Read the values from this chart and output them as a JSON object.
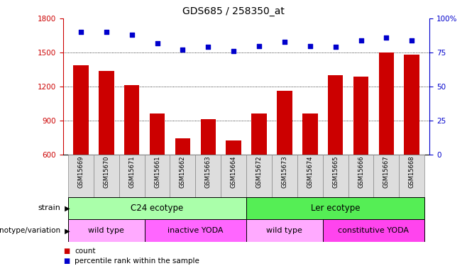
{
  "title": "GDS685 / 258350_at",
  "categories": [
    "GSM15669",
    "GSM15670",
    "GSM15671",
    "GSM15661",
    "GSM15662",
    "GSM15663",
    "GSM15664",
    "GSM15672",
    "GSM15673",
    "GSM15674",
    "GSM15665",
    "GSM15666",
    "GSM15667",
    "GSM15668"
  ],
  "bar_values": [
    1390,
    1340,
    1210,
    960,
    740,
    910,
    720,
    960,
    1160,
    960,
    1300,
    1290,
    1500,
    1480
  ],
  "scatter_values": [
    90,
    90,
    88,
    82,
    77,
    79,
    76,
    80,
    83,
    80,
    79,
    84,
    86,
    84
  ],
  "bar_color": "#cc0000",
  "scatter_color": "#0000cc",
  "ylim_left": [
    600,
    1800
  ],
  "ylim_right": [
    0,
    100
  ],
  "yticks_left": [
    600,
    900,
    1200,
    1500,
    1800
  ],
  "yticks_right": [
    0,
    25,
    50,
    75,
    100
  ],
  "c24_cols": 7,
  "ler_cols": 7,
  "wild_type_c24_cols": 3,
  "inactive_yoda_cols": 4,
  "wild_type_ler_cols": 3,
  "constitutive_yoda_cols": 4,
  "strain_c24_color": "#aaffaa",
  "strain_ler_color": "#55ee55",
  "geno_wildtype_color": "#ffaaff",
  "geno_inactive_color": "#ff66ff",
  "geno_constitutive_color": "#ff44ee"
}
